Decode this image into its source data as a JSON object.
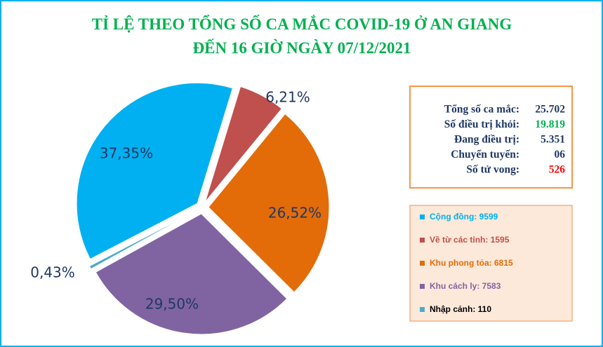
{
  "chart_data": {
    "type": "pie",
    "title": [
      "TỈ LỆ THEO TỔNG SỐ CA MẮC COVID-19 Ở AN GIANG",
      "ĐẾN 16 GIỜ NGÀY 07/12/2021"
    ],
    "categories": [
      "Cộng đồng: 9599",
      "Về từ các tỉnh: 1595",
      "Khu phong tỏa: 6815",
      "Khu cách ly: 7583",
      "Nhập cảnh: 110"
    ],
    "values": [
      37.35,
      6.21,
      26.52,
      29.5,
      0.43
    ],
    "value_labels": [
      "37,35%",
      "6,21%",
      "26,52%",
      "29,50%",
      "0,43%"
    ],
    "colors": [
      "#00b0f0",
      "#c0504d",
      "#e36c09",
      "#8064a2",
      "#4bacc6"
    ],
    "legend_text_colors": [
      "#00b0f0",
      "#c0504d",
      "#e36c09",
      "#8064a2",
      "#000000"
    ],
    "summary": [
      {
        "label": "Tổng số ca mắc:",
        "value": "25.702",
        "color": "#1f3864"
      },
      {
        "label": "Số điều trị khỏi:",
        "value": "19.819",
        "color": "#00b050"
      },
      {
        "label": "Đang điều trị:",
        "value": "5.351",
        "color": "#1f3864"
      },
      {
        "label": "Chuyển tuyến:",
        "value": "06",
        "color": "#1f3864"
      },
      {
        "label": "Số tử vong:",
        "value": "526",
        "color": "#ff0000"
      }
    ]
  }
}
